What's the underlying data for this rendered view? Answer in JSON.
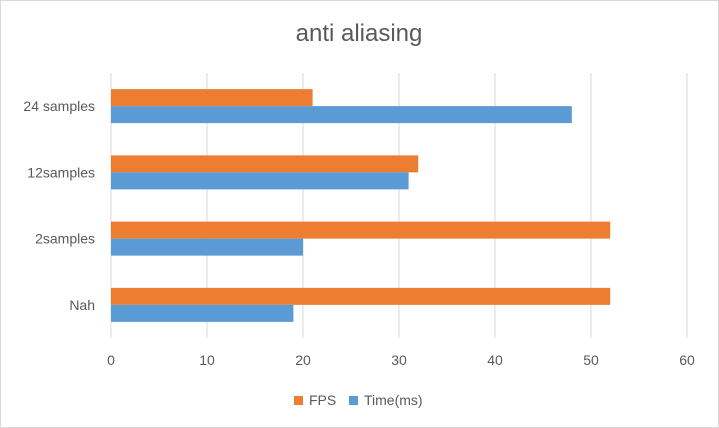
{
  "chart_data": {
    "type": "bar",
    "orientation": "horizontal",
    "title": "anti aliasing",
    "categories": [
      "24 samples",
      "12samples",
      "2samples",
      "Nah"
    ],
    "series": [
      {
        "name": "FPS",
        "color": "#ED7D31",
        "values": [
          21,
          32,
          52,
          52
        ]
      },
      {
        "name": "Time(ms)",
        "color": "#5B9BD5",
        "values": [
          48,
          31,
          20,
          19
        ]
      }
    ],
    "xlim": [
      0,
      60
    ],
    "xticks": [
      0,
      10,
      20,
      30,
      40,
      50,
      60
    ],
    "grid": true,
    "legend": "bottom"
  }
}
